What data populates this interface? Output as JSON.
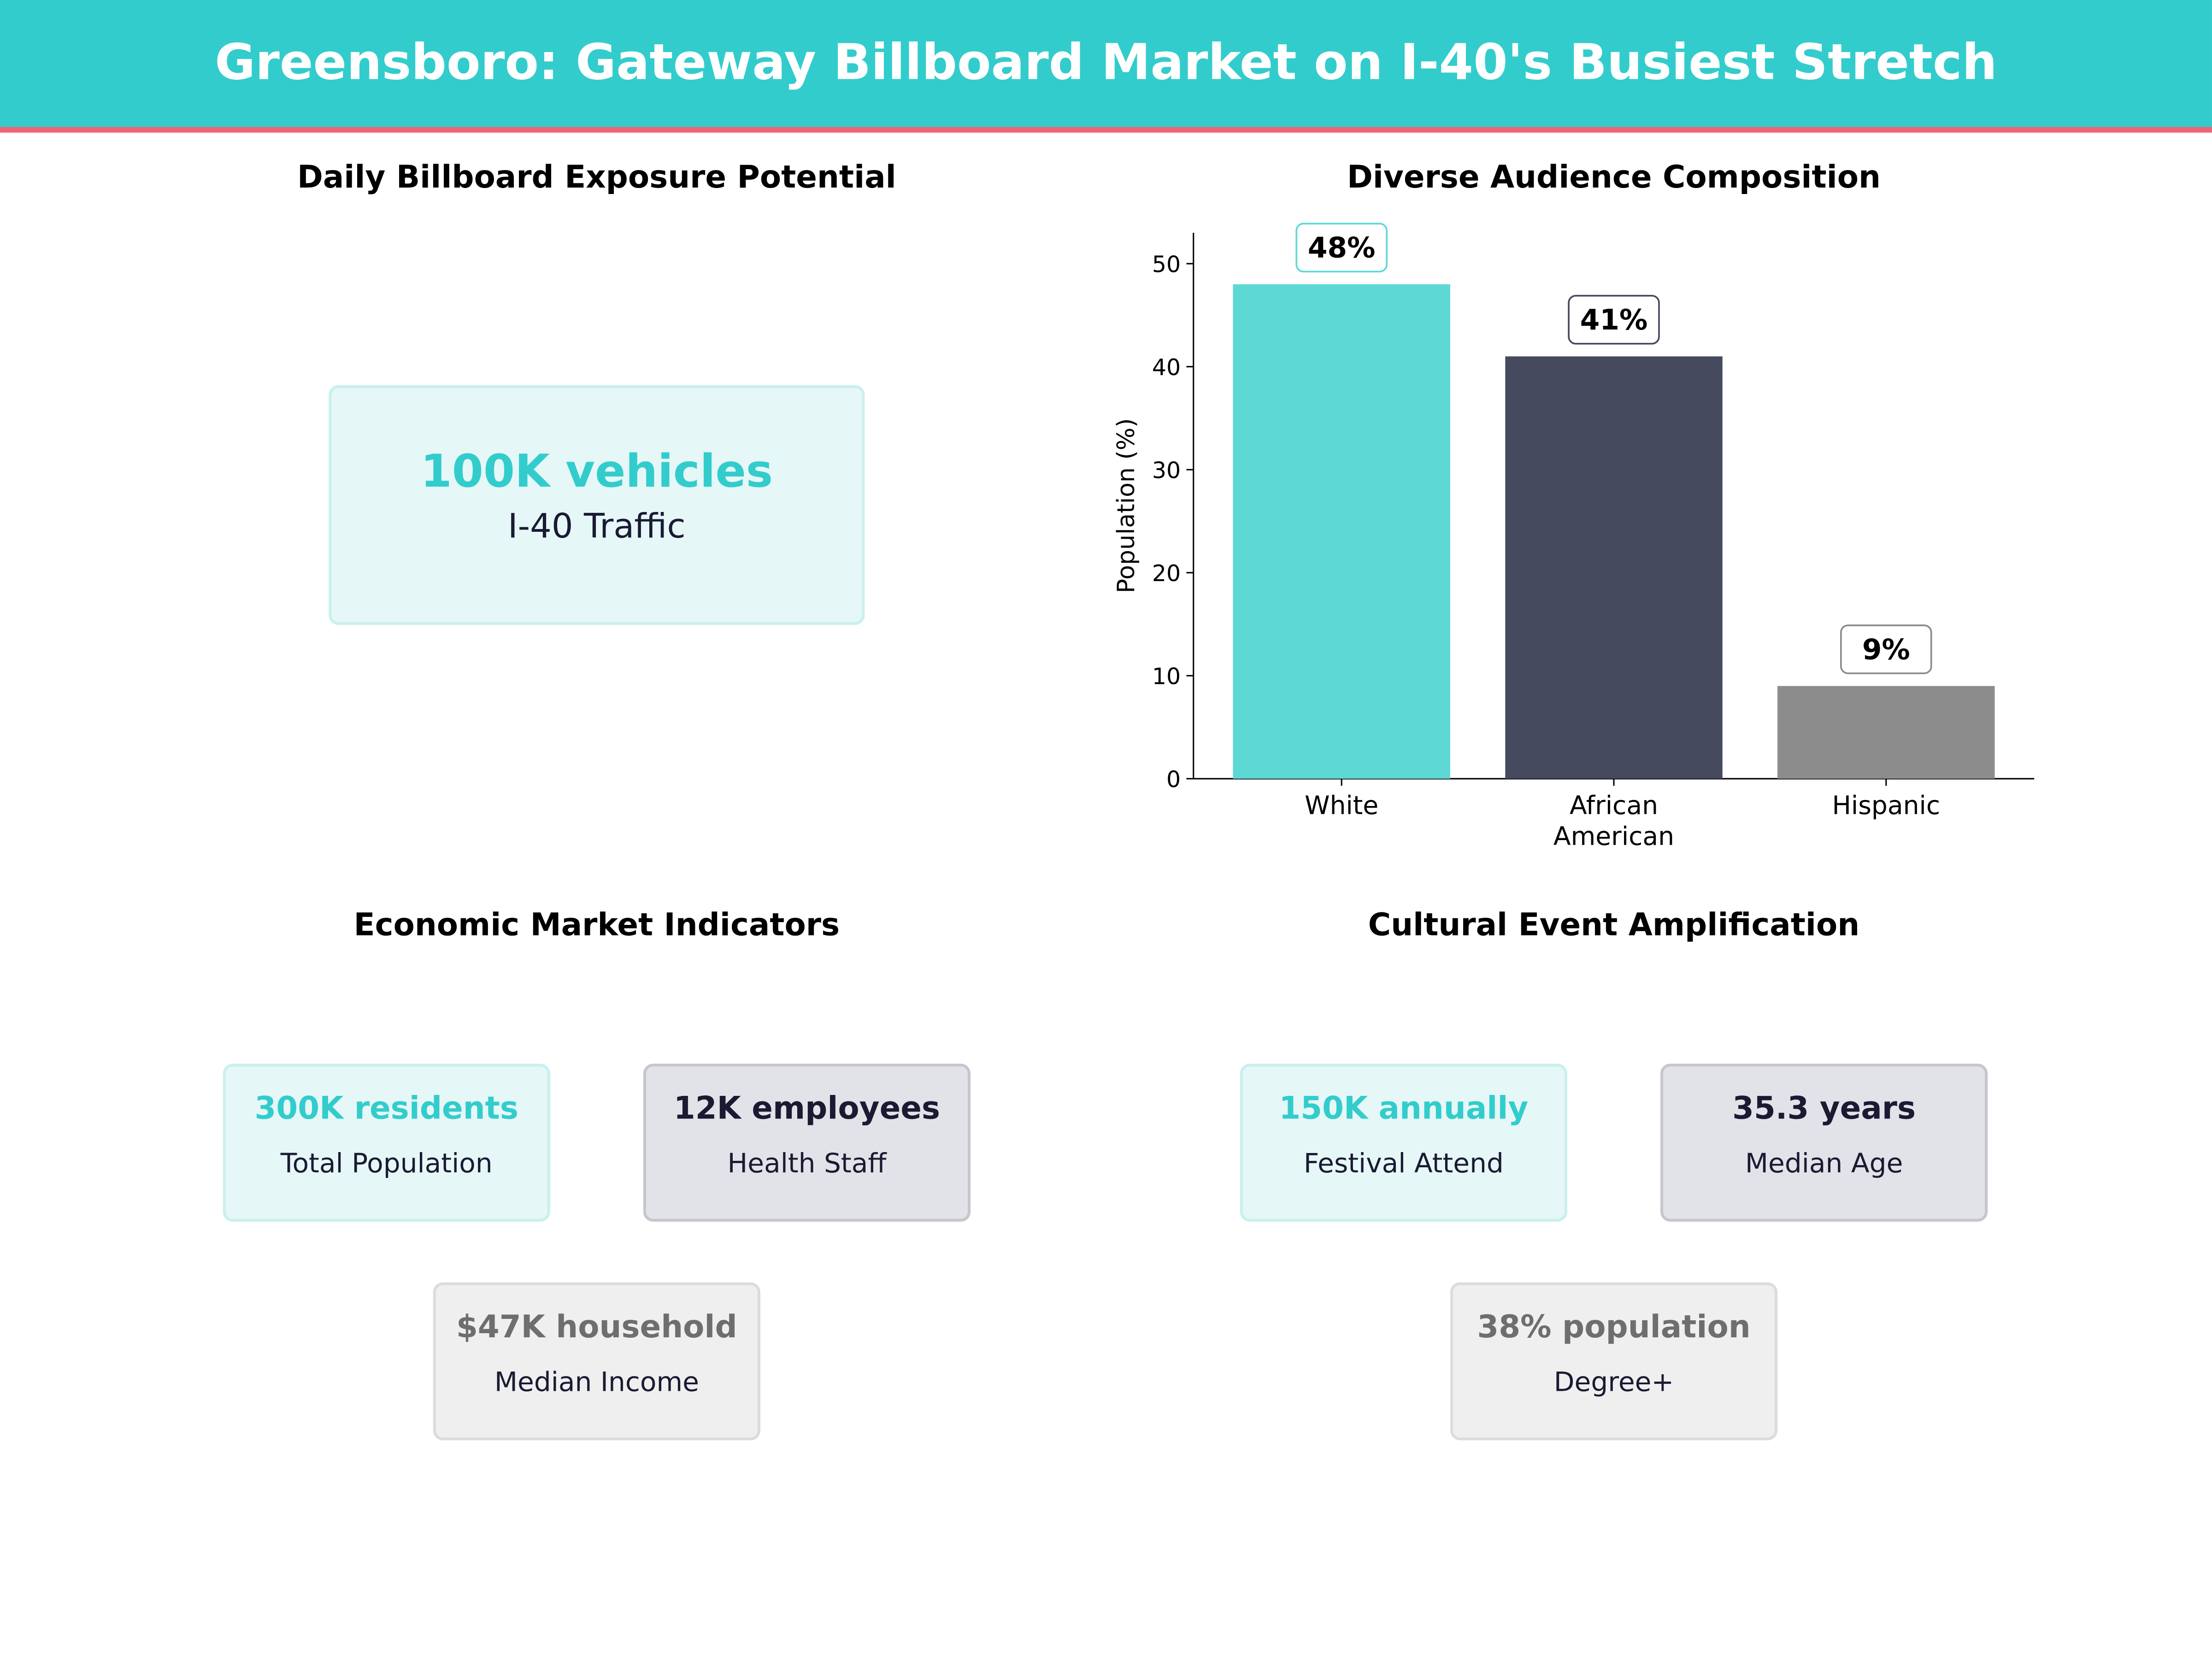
{
  "header": {
    "title": "Greensboro: Gateway Billboard Market on I-40's Busiest Stretch"
  },
  "colors": {
    "teal": "#33CCCC",
    "accent_line": "#F06277",
    "navy": "#454A5F",
    "grey": "#8C8C8C"
  },
  "exposure": {
    "title": "Daily Billboard Exposure Potential",
    "value": "100K vehicles",
    "label": "I-40 Traffic"
  },
  "chart_data": {
    "type": "bar",
    "title": "Diverse Audience Composition",
    "xlabel": "",
    "ylabel": "Population (%)",
    "categories": [
      "White",
      "African American",
      "Hispanic"
    ],
    "category_lines": [
      [
        "White"
      ],
      [
        "African",
        "American"
      ],
      [
        "Hispanic"
      ]
    ],
    "values": [
      48,
      41,
      9
    ],
    "data_labels": [
      "48%",
      "41%",
      "9%"
    ],
    "bar_colors": [
      "#5DD8D5",
      "#454A5F",
      "#8C8C8C"
    ],
    "yticks": [
      0,
      10,
      20,
      30,
      40,
      50
    ],
    "ylim": [
      0,
      53
    ],
    "grid": false
  },
  "economic": {
    "title": "Economic Market Indicators",
    "cards": [
      {
        "value": "300K residents",
        "label": "Total Population"
      },
      {
        "value": "12K employees",
        "label": "Health Staff"
      },
      {
        "value": "$47K household",
        "label": "Median Income"
      }
    ]
  },
  "cultural": {
    "title": "Cultural Event Amplification",
    "cards": [
      {
        "value": "150K annually",
        "label": "Festival Attend"
      },
      {
        "value": "35.3 years",
        "label": "Median Age"
      },
      {
        "value": "38% population",
        "label": "Degree+"
      }
    ]
  }
}
